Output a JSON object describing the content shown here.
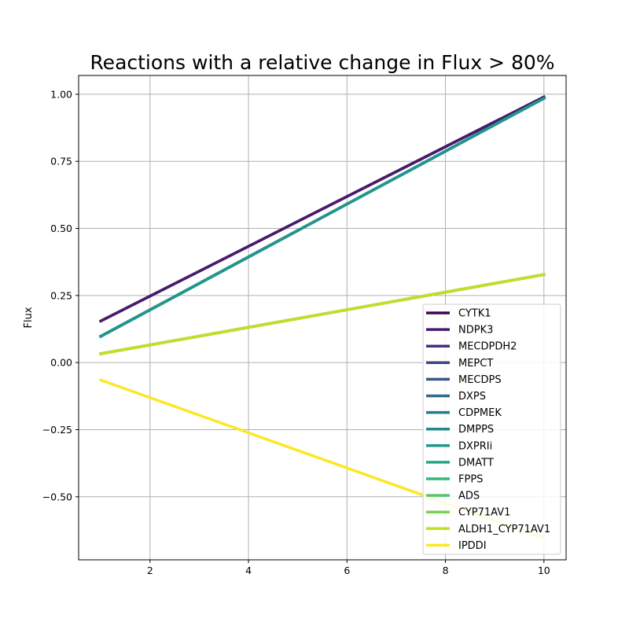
{
  "chart_data": {
    "type": "line",
    "title": "Reactions with a relative change in Flux > 80%",
    "xlabel": "",
    "ylabel": "Flux",
    "xlim": [
      0.55,
      10.45
    ],
    "ylim": [
      -0.735,
      1.07
    ],
    "xticks": [
      2,
      4,
      6,
      8,
      10
    ],
    "yticks": [
      -0.5,
      -0.25,
      0.0,
      0.25,
      0.5,
      0.75,
      1.0
    ],
    "ytick_labels": [
      "−0.50",
      "−0.25",
      "0.00",
      "0.25",
      "0.50",
      "0.75",
      "1.00"
    ],
    "grid": true,
    "legend_position": "lower-right",
    "series": [
      {
        "name": "CYTK1",
        "color": "#440154",
        "x": [
          1,
          10
        ],
        "y": [
          0.155,
          0.99
        ]
      },
      {
        "name": "NDPK3",
        "color": "#481a6c",
        "x": [
          1,
          10
        ],
        "y": [
          0.155,
          0.99
        ]
      },
      {
        "name": "MECDPDH2",
        "color": "#472f7d",
        "x": [
          1,
          10
        ],
        "y": [
          0.098,
          0.985
        ]
      },
      {
        "name": "MEPCT",
        "color": "#414487",
        "x": [
          1,
          10
        ],
        "y": [
          0.098,
          0.985
        ]
      },
      {
        "name": "MECDPS",
        "color": "#39568c",
        "x": [
          1,
          10
        ],
        "y": [
          0.098,
          0.985
        ]
      },
      {
        "name": "DXPS",
        "color": "#31688e",
        "x": [
          1,
          10
        ],
        "y": [
          0.098,
          0.985
        ]
      },
      {
        "name": "CDPMEK",
        "color": "#2a788e",
        "x": [
          1,
          10
        ],
        "y": [
          0.098,
          0.985
        ]
      },
      {
        "name": "DMPPS",
        "color": "#23888e",
        "x": [
          1,
          10
        ],
        "y": [
          0.098,
          0.985
        ]
      },
      {
        "name": "DXPRIi",
        "color": "#1f988b",
        "x": [
          1,
          10
        ],
        "y": [
          0.098,
          0.985
        ]
      },
      {
        "name": "DMATT",
        "color": "#22a884",
        "x": [
          1,
          10
        ],
        "y": [
          0.033,
          0.328
        ]
      },
      {
        "name": "FPPS",
        "color": "#35b779",
        "x": [
          1,
          10
        ],
        "y": [
          0.033,
          0.328
        ]
      },
      {
        "name": "ADS",
        "color": "#54c568",
        "x": [
          1,
          10
        ],
        "y": [
          0.033,
          0.328
        ]
      },
      {
        "name": "CYP71AV1",
        "color": "#7ad151",
        "x": [
          1,
          10
        ],
        "y": [
          0.033,
          0.328
        ]
      },
      {
        "name": "ALDH1_CYP71AV1",
        "color": "#c2df23",
        "x": [
          1,
          10
        ],
        "y": [
          0.033,
          0.328
        ]
      },
      {
        "name": "IPDDI",
        "color": "#fde725",
        "x": [
          1,
          10
        ],
        "y": [
          -0.065,
          -0.655
        ]
      }
    ]
  }
}
